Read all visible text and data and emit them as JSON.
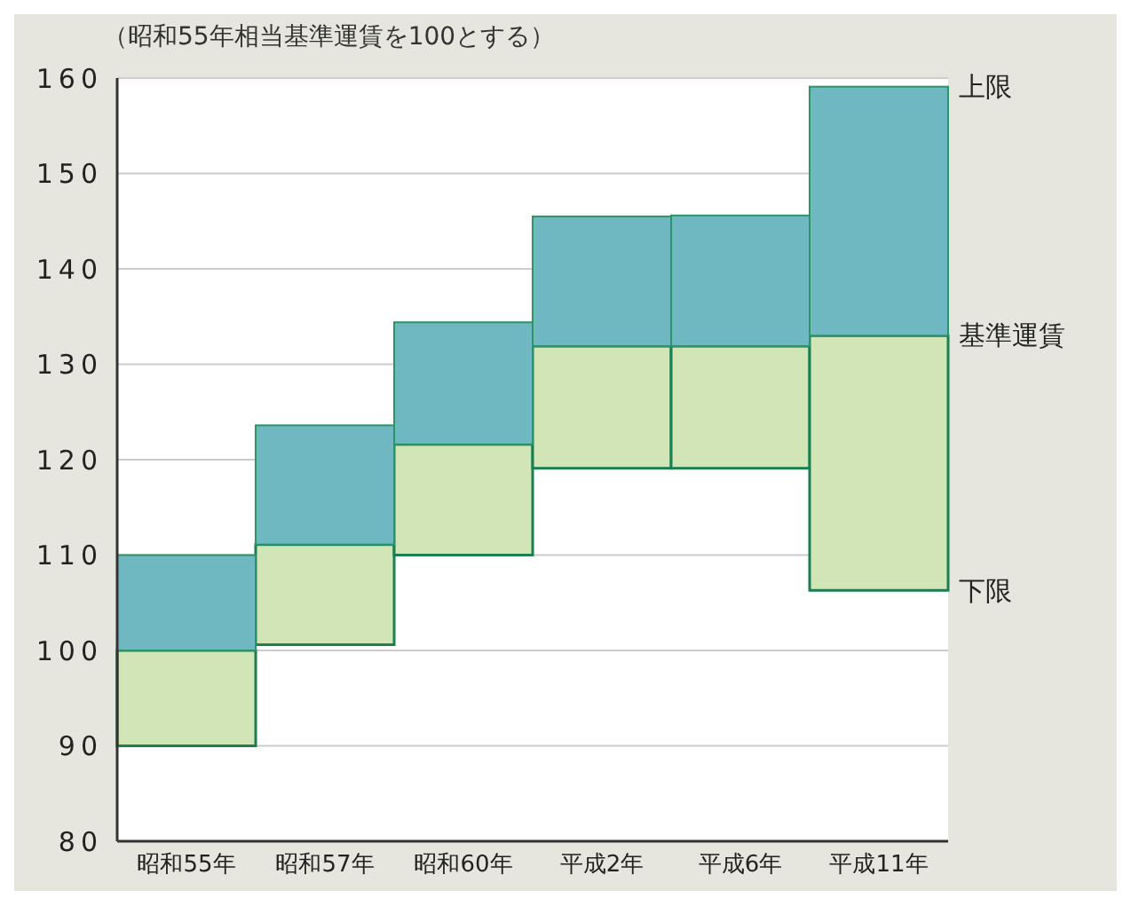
{
  "chart_data": {
    "type": "bar",
    "subtitle": "（昭和55年相当基準運賃を100とする）",
    "categories": [
      "昭和55年",
      "昭和57年",
      "昭和60年",
      "平成2年",
      "平成6年",
      "平成11年"
    ],
    "series": [
      {
        "color": "#d1e5b6",
        "base": [
          90,
          100.6,
          110,
          119.1,
          119.1,
          106.3
        ],
        "values": [
          10,
          10.5,
          11.6,
          12.8,
          12.8,
          26.7
        ]
      },
      {
        "color": "#6fb7c1",
        "base": [
          100,
          111.1,
          121.6,
          131.9,
          131.9,
          133
        ],
        "values": [
          10,
          12.5,
          12.8,
          13.6,
          13.7,
          26.1
        ]
      }
    ],
    "ylim": [
      80,
      160
    ],
    "yticks": [
      80,
      90,
      100,
      110,
      120,
      130,
      140,
      150,
      160
    ],
    "grid": "y",
    "annotations": [
      {
        "text": "上限",
        "x": "平成11年",
        "y": 159.1
      },
      {
        "text": "基準運賃",
        "x": "平成11年",
        "y": 133
      },
      {
        "text": "下限",
        "x": "平成11年",
        "y": 106.3
      }
    ]
  }
}
